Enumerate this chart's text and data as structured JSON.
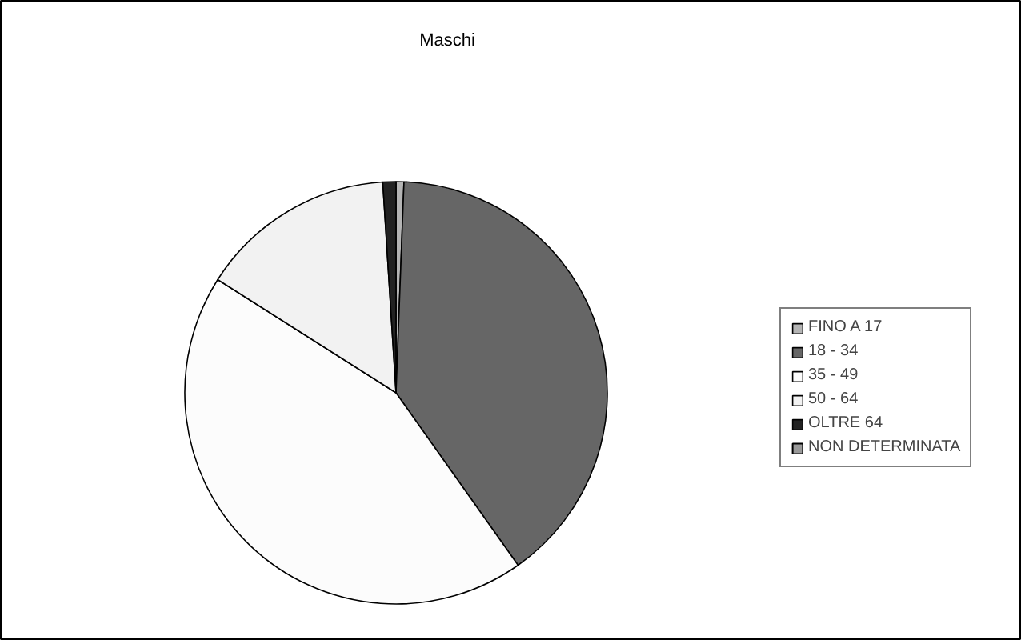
{
  "chart_data": {
    "type": "pie",
    "title": "Maschi",
    "categories": [
      "FINO A 17",
      "18 - 34",
      "35 - 49",
      "50 - 64",
      "OLTRE 64",
      "NON DETERMINATA"
    ],
    "values": [
      0.6,
      39.6,
      43.8,
      15,
      1,
      0
    ],
    "colors": [
      "#b4b4b4",
      "#666666",
      "#fcfcfc",
      "#f2f2f2",
      "#222222",
      "#999999"
    ],
    "legend": "right"
  }
}
